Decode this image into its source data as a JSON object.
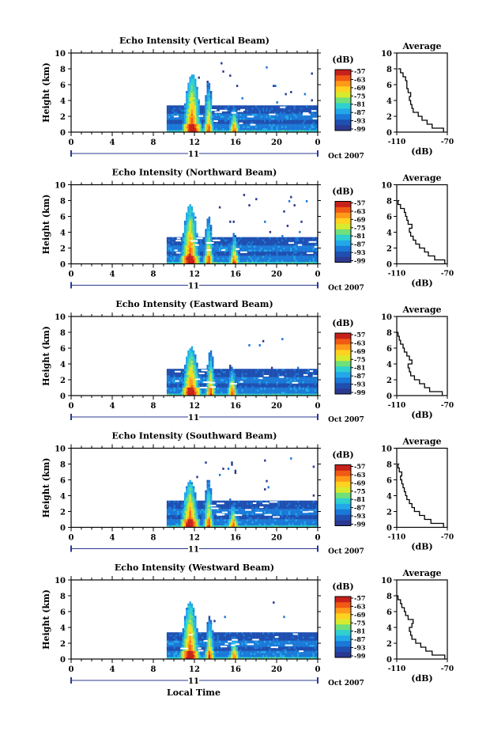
{
  "figure": {
    "xlabel_bottom": "Local Time",
    "colorbar_unit": "(dB)",
    "colorbar_ticks": [
      "-57",
      "-63",
      "-69",
      "-75",
      "-81",
      "-87",
      "-93",
      "-99"
    ],
    "colorbar_colors": [
      "#2b3990",
      "#1f4fb0",
      "#1a78d8",
      "#22a8e8",
      "#2fd0d0",
      "#6fe07a",
      "#d8ea2e",
      "#ffd21f",
      "#ff9a1a",
      "#f05a14",
      "#c8201a"
    ],
    "date_label": "Oct 2007",
    "day_label": "11",
    "avg_title": "Average",
    "avg_xlabel": "(dB)",
    "avg_xticks": [
      "-110",
      "-70"
    ]
  },
  "chart_data": [
    {
      "type": "heatmap",
      "title": "Echo Intensity (Vertical Beam)",
      "ylabel": "Height (km)",
      "xticks": [
        "0",
        "4",
        "8",
        "12",
        "16",
        "20",
        "0"
      ],
      "yticks": [
        "0",
        "2",
        "4",
        "6",
        "8",
        "10"
      ],
      "xlim": [
        0,
        24
      ],
      "ylim": [
        0,
        10
      ],
      "zlim": [
        -99,
        -57
      ],
      "data_start_hour": 9.3,
      "cores": [
        [
          11.7,
          7.5
        ],
        [
          13.3,
          6.5
        ],
        [
          15.8,
          3.5
        ]
      ],
      "average_profile": {
        "xlim": [
          -110,
          -70
        ],
        "height_km": [
          0,
          0.5,
          1,
          1.5,
          2,
          2.5,
          3,
          3.5,
          4,
          4.5,
          5,
          5.5,
          6,
          6.5,
          7,
          7.5,
          8
        ],
        "db": [
          -73,
          -82,
          -86,
          -90,
          -93,
          -97,
          -98,
          -99,
          -100,
          -99,
          -101,
          -102,
          -102,
          -103,
          -105,
          -107,
          -109
        ]
      }
    },
    {
      "type": "heatmap",
      "title": "Echo Intensity (Northward Beam)",
      "ylabel": "Height (km)",
      "xticks": [
        "0",
        "4",
        "8",
        "12",
        "16",
        "20",
        "0"
      ],
      "yticks": [
        "0",
        "2",
        "4",
        "6",
        "8",
        "10"
      ],
      "xlim": [
        0,
        24
      ],
      "ylim": [
        0,
        10
      ],
      "zlim": [
        -99,
        -57
      ],
      "data_start_hour": 9.3,
      "cores": [
        [
          11.5,
          7.6
        ],
        [
          13.3,
          6.2
        ],
        [
          15.8,
          4.0
        ]
      ],
      "average_profile": {
        "xlim": [
          -110,
          -70
        ],
        "height_km": [
          0,
          0.5,
          1,
          1.5,
          2,
          2.5,
          3,
          3.5,
          4,
          4.5,
          5,
          5.5,
          6,
          6.5,
          7,
          7.5,
          8
        ],
        "db": [
          -72,
          -80,
          -85,
          -88,
          -92,
          -95,
          -97,
          -99,
          -100,
          -98,
          -101,
          -102,
          -103,
          -104,
          -107,
          -109,
          -108
        ]
      }
    },
    {
      "type": "heatmap",
      "title": "Echo Intensity (Eastward Beam)",
      "ylabel": "Height (km)",
      "xticks": [
        "0",
        "4",
        "8",
        "12",
        "16",
        "20",
        "0"
      ],
      "yticks": [
        "0",
        "2",
        "4",
        "6",
        "8",
        "10"
      ],
      "xlim": [
        0,
        24
      ],
      "ylim": [
        0,
        10
      ],
      "zlim": [
        -99,
        -57
      ],
      "data_start_hour": 9.3,
      "cores": [
        [
          11.6,
          6.3
        ],
        [
          13.5,
          5.9
        ],
        [
          15.6,
          3.8
        ]
      ],
      "average_profile": {
        "xlim": [
          -110,
          -70
        ],
        "height_km": [
          0,
          0.5,
          1,
          1.5,
          2,
          2.5,
          3,
          3.5,
          4,
          4.5,
          5,
          5.5,
          6,
          6.5,
          7,
          7.5,
          8
        ],
        "db": [
          -74,
          -84,
          -88,
          -92,
          -96,
          -99,
          -100,
          -101,
          -98,
          -100,
          -102,
          -104,
          -105,
          -107,
          -108,
          -109,
          -110
        ]
      }
    },
    {
      "type": "heatmap",
      "title": "Echo Intensity (Southward Beam)",
      "ylabel": "Height (km)",
      "xticks": [
        "0",
        "4",
        "8",
        "12",
        "16",
        "20",
        "0"
      ],
      "yticks": [
        "0",
        "2",
        "4",
        "6",
        "8",
        "10"
      ],
      "xlim": [
        0,
        24
      ],
      "ylim": [
        0,
        10
      ],
      "zlim": [
        -99,
        -57
      ],
      "data_start_hour": 9.3,
      "cores": [
        [
          11.5,
          6.0
        ],
        [
          13.3,
          6.3
        ],
        [
          15.7,
          3.3
        ]
      ],
      "average_profile": {
        "xlim": [
          -110,
          -70
        ],
        "height_km": [
          0,
          0.5,
          1,
          1.5,
          2,
          2.5,
          3,
          3.5,
          4,
          4.5,
          5,
          5.5,
          6,
          6.5,
          7,
          7.5,
          8
        ],
        "db": [
          -73,
          -83,
          -88,
          -92,
          -96,
          -98,
          -100,
          -102,
          -103,
          -104,
          -105,
          -106,
          -107,
          -106,
          -108,
          -109,
          -108
        ]
      }
    },
    {
      "type": "heatmap",
      "title": "Echo Intensity (Westward Beam)",
      "ylabel": "Height (km)",
      "xticks": [
        "0",
        "4",
        "8",
        "12",
        "16",
        "20",
        "0"
      ],
      "yticks": [
        "0",
        "2",
        "4",
        "6",
        "8",
        "10"
      ],
      "xlim": [
        0,
        24
      ],
      "ylim": [
        0,
        10
      ],
      "zlim": [
        -99,
        -57
      ],
      "data_start_hour": 9.3,
      "cores": [
        [
          11.5,
          7.4
        ],
        [
          13.4,
          5.5
        ],
        [
          15.8,
          3.2
        ]
      ],
      "average_profile": {
        "xlim": [
          -110,
          -70
        ],
        "height_km": [
          0,
          0.5,
          1,
          1.5,
          2,
          2.5,
          3,
          3.5,
          4,
          4.5,
          5,
          5.5,
          6,
          6.5,
          7,
          7.5,
          8
        ],
        "db": [
          -72,
          -82,
          -87,
          -91,
          -95,
          -98,
          -99,
          -100,
          -98,
          -97,
          -101,
          -103,
          -104,
          -106,
          -107,
          -109,
          -110
        ]
      }
    }
  ]
}
